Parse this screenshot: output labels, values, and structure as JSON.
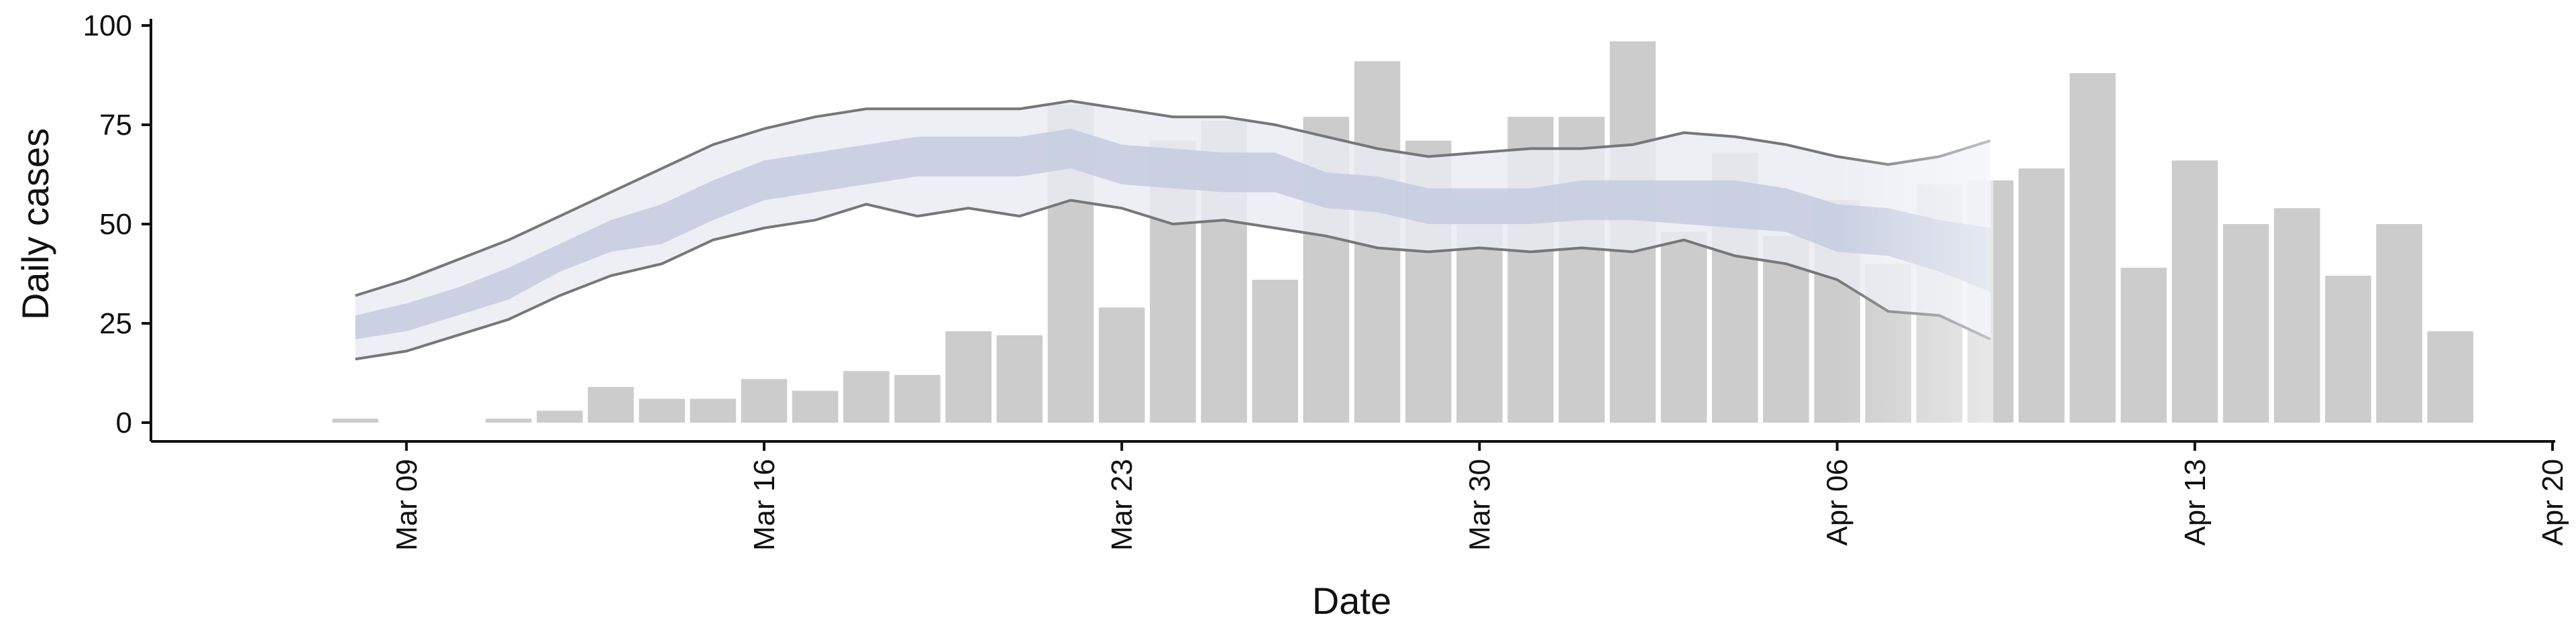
{
  "chart_data": {
    "type": "bar",
    "xlabel": "Date",
    "ylabel": "Daily cases",
    "ylim": [
      0,
      100
    ],
    "xlim": [
      "2020-03-04",
      "2020-04-20"
    ],
    "yticks": [
      0,
      25,
      50,
      75,
      100
    ],
    "xticks": [
      {
        "date": "2020-03-09",
        "label": "Mar 09"
      },
      {
        "date": "2020-03-16",
        "label": "Mar 16"
      },
      {
        "date": "2020-03-23",
        "label": "Mar 23"
      },
      {
        "date": "2020-03-30",
        "label": "Mar 30"
      },
      {
        "date": "2020-04-06",
        "label": "Apr 06"
      },
      {
        "date": "2020-04-13",
        "label": "Apr 13"
      },
      {
        "date": "2020-04-20",
        "label": "Apr 20"
      }
    ],
    "grid": false,
    "bars": {
      "color": "#cccccc",
      "start_date": "2020-03-08",
      "values": [
        1,
        0,
        0,
        1,
        3,
        9,
        6,
        6,
        11,
        8,
        13,
        12,
        23,
        22,
        80,
        29,
        71,
        76,
        36,
        77,
        91,
        71,
        56,
        77,
        77,
        96,
        48,
        68,
        47,
        56,
        40,
        60,
        61,
        64,
        88,
        39,
        66,
        50,
        54,
        37,
        50,
        23
      ]
    },
    "band": {
      "start_date": "2020-03-08",
      "outer_color": "#e9ebf3",
      "inner_color": "#c3cadf",
      "line_color": "#777777",
      "upper": [
        32,
        36,
        41,
        46,
        52,
        58,
        64,
        70,
        74,
        77,
        79,
        79,
        79,
        79,
        81,
        79,
        77,
        77,
        75,
        72,
        69,
        67,
        68,
        69,
        69,
        70,
        73,
        72,
        70,
        67,
        65,
        67,
        71
      ],
      "inner_upper": [
        27,
        30,
        34,
        39,
        45,
        51,
        55,
        61,
        66,
        68,
        70,
        72,
        72,
        72,
        74,
        70,
        69,
        68,
        68,
        63,
        62,
        59,
        59,
        59,
        61,
        61,
        61,
        61,
        59,
        55,
        54,
        51,
        49
      ],
      "inner_lower": [
        21,
        23,
        27,
        31,
        38,
        43,
        45,
        51,
        56,
        58,
        60,
        62,
        62,
        62,
        64,
        60,
        59,
        58,
        58,
        54,
        53,
        50,
        50,
        50,
        51,
        51,
        50,
        49,
        48,
        43,
        42,
        38,
        33
      ],
      "lower": [
        16,
        18,
        22,
        26,
        32,
        37,
        40,
        46,
        49,
        51,
        55,
        52,
        54,
        52,
        56,
        54,
        50,
        51,
        49,
        47,
        44,
        43,
        44,
        43,
        44,
        43,
        46,
        42,
        40,
        36,
        28,
        27,
        21
      ],
      "fade_from_date": "2020-04-06"
    }
  }
}
